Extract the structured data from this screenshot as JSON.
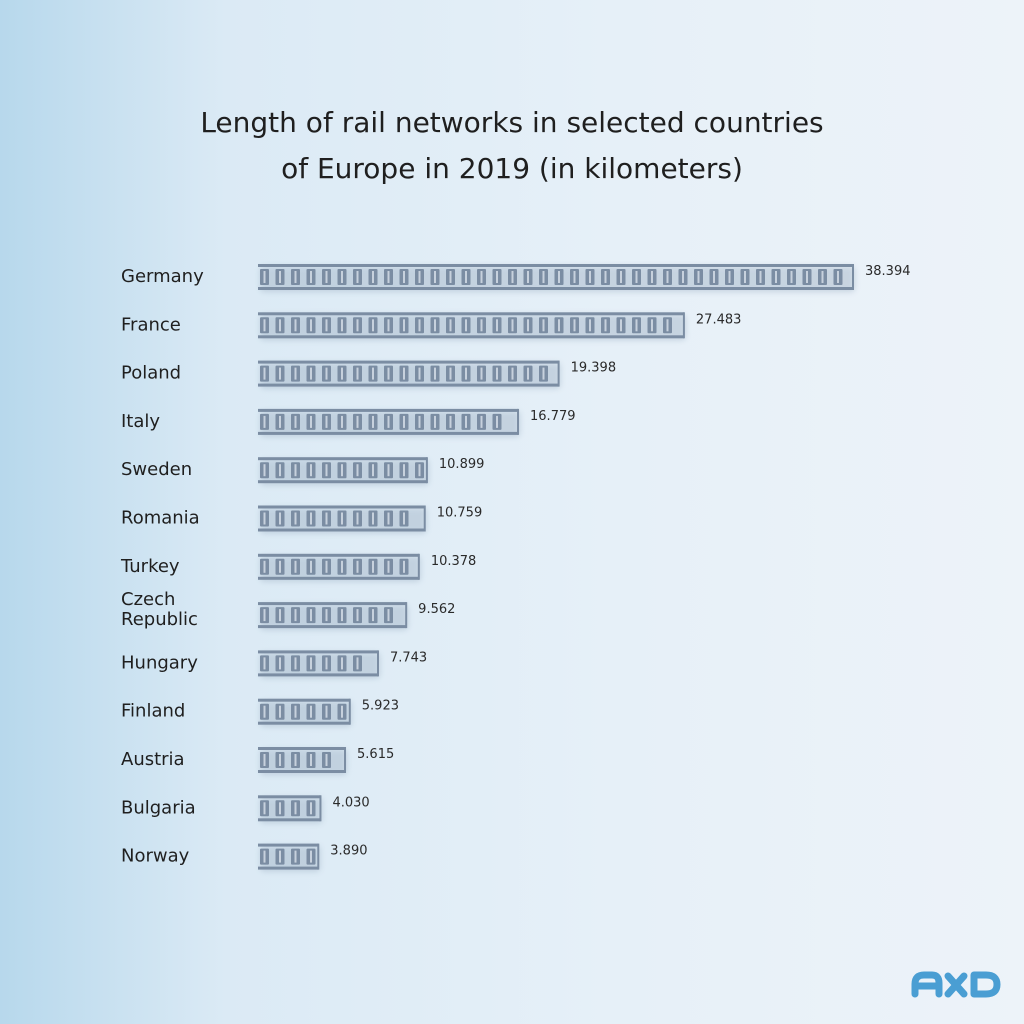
{
  "title_lines": [
    "Length of rail networks in selected countries",
    "of Europe in 2019 (in kilometers)"
  ],
  "chart_data": {
    "type": "bar",
    "orientation": "horizontal",
    "title": "Length of rail networks in selected countries of Europe in 2019 (in kilometers)",
    "categories": [
      [
        "Germany"
      ],
      [
        "France"
      ],
      [
        "Poland"
      ],
      [
        "Italy"
      ],
      [
        "Sweden"
      ],
      [
        "Romania"
      ],
      [
        "Turkey"
      ],
      [
        "Czech",
        "Republic"
      ],
      [
        "Hungary"
      ],
      [
        "Finland"
      ],
      [
        "Austria"
      ],
      [
        "Bulgaria"
      ],
      [
        "Norway"
      ]
    ],
    "values": [
      38394,
      27483,
      19398,
      16779,
      10899,
      10759,
      10378,
      9562,
      7743,
      5923,
      5615,
      4030,
      3890
    ],
    "value_labels": [
      "38.394",
      "27.483",
      "19.398",
      "16.779",
      "10.899",
      "10.759",
      "10.378",
      "9.562",
      "7.743",
      "5.923",
      "5.615",
      "4.030",
      "3.890"
    ],
    "xlim": [
      0,
      38394
    ],
    "grid": false,
    "legend": "none",
    "bar_style": "railway-track",
    "colors": {
      "rail": "#7b8da3",
      "sleeper": "#7b8da3",
      "text": "#1f1f1f"
    }
  },
  "logo": {
    "icon": "axd-logo-icon",
    "color": "#4a9ed3"
  }
}
